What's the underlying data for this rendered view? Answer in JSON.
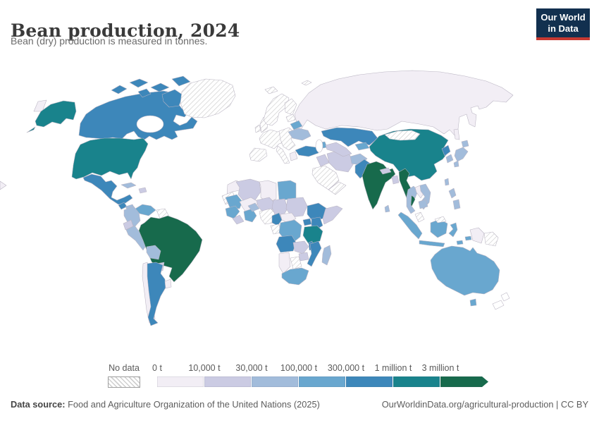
{
  "header": {
    "title": "Bean production, 2024",
    "subtitle": "Bean (dry) production is measured in tonnes."
  },
  "logo": {
    "line1": "Our World",
    "line2": "in Data",
    "bg": "#12304f",
    "accent": "#c73931"
  },
  "legend": {
    "no_data_label": "No data"
  },
  "footer": {
    "source_label": "Data source:",
    "source_rest": " Food and Agriculture Organization of the United Nations (2025)",
    "link": "OurWorldinData.org/agricultural-production | CC BY"
  },
  "chart_data": {
    "type": "choropleth",
    "title": "Bean production, 2024",
    "subtitle": "Bean (dry) production is measured in tonnes.",
    "year": "2024",
    "unit": "tonnes",
    "legend_position": "bottom",
    "bins": [
      {
        "tick": "0 t",
        "color": "#f2eef5"
      },
      {
        "tick": "10,000 t",
        "color": "#cbcbe3"
      },
      {
        "tick": "30,000 t",
        "color": "#a2bcdb"
      },
      {
        "tick": "100,000 t",
        "color": "#69a7cf"
      },
      {
        "tick": "300,000 t",
        "color": "#3d87ba"
      },
      {
        "tick": "1 million t",
        "color": "#19838c"
      },
      {
        "tick": "3 million t",
        "color": "#176a4c"
      }
    ],
    "no_data_color_pattern": "diagonal-hatch",
    "countries": {
      "Brazil": 6,
      "India": 6,
      "Myanmar": 6,
      "United States": 5,
      "China": 5,
      "Tanzania": 5,
      "Canada": 4,
      "Mexico": 4,
      "Argentina": 4,
      "Kazakhstan": 4,
      "Turkey": 4,
      "Ethiopia": 4,
      "Kenya": 4,
      "Uganda": 4,
      "Cameroon": 4,
      "Angola": 4,
      "Mozambique": 4,
      "Malawi": 4,
      "Pakistan": 4,
      "North Korea": 4,
      "Guatemala": 4,
      "Belarus": 3,
      "Australia": 3,
      "DR Congo": 3,
      "South Africa": 3,
      "Venezuela": 3,
      "Senegal-Guinea": 3,
      "Cote d'Ivoire-Ghana": 3,
      "Burkina Faso": 2,
      "Mauritania": 3,
      "Kyrgyzstan": 3,
      "Azerbaijan": 3,
      "Costa Rica-Panama": 3,
      "Indonesia": 3,
      "Egypt": 3,
      "Ukraine": 2,
      "Peru": 2,
      "Bolivia": 2,
      "Madagascar": 2,
      "Japan": 2,
      "Thailand": 2,
      "Vietnam": 2,
      "Cambodia": 2,
      "Philippines": 2,
      "South Korea": 2,
      "Cuba": 2,
      "Sri Lanka": 2,
      "Taiwan": 2,
      "Honduras-Nicaragua": 2,
      "Afghanistan": 2,
      "Colombia": 2,
      "Paraguay": 1,
      "Niger": 1,
      "Chad": 1,
      "Sudan": 1,
      "Somalia": 1,
      "Nepal": 1,
      "Bangladesh": 1,
      "Zambia": 1,
      "Iraq": 1,
      "Iran": 1,
      "Algeria": 1,
      "Hispaniola": 1,
      "Uzbekistan-Turkmenistan": 1,
      "Zimbabwe": 1,
      "Ecuador": 1,
      "Sierra Leone-Liberia": 1,
      "Russia": 0,
      "Morocco": 0,
      "Libya": 0,
      "Mali": 0,
      "Namibia": 0,
      "Uruguay": 0,
      "Chile": 0,
      "Greece": 0,
      "Laos": 0,
      "Central African Republic": 0,
      "Indonesia-Papua": 0,
      "Greenland": "no-data",
      "Iceland": "no-data",
      "United Kingdom": "no-data",
      "Ireland": "no-data",
      "Norway-Sweden": "no-data",
      "Finland": "no-data",
      "Baltics": "no-data",
      "Western Europe": "no-data",
      "Spain-Portugal": "no-data",
      "Italy": "no-data",
      "Central Europe": "no-data",
      "Svalbard": "no-data",
      "Saudi Arabia": "no-data",
      "Yemen-Oman": "no-data",
      "Mongolia": "no-data",
      "Nigeria": "no-data",
      "Botswana": "no-data",
      "Gabon-Congo": "no-data",
      "Western Sahara": "no-data",
      "Malaysia": "no-data",
      "Papua New Guinea": "no-data",
      "Guyana-Suriname": "no-data",
      "New Zealand": "outline"
    }
  }
}
